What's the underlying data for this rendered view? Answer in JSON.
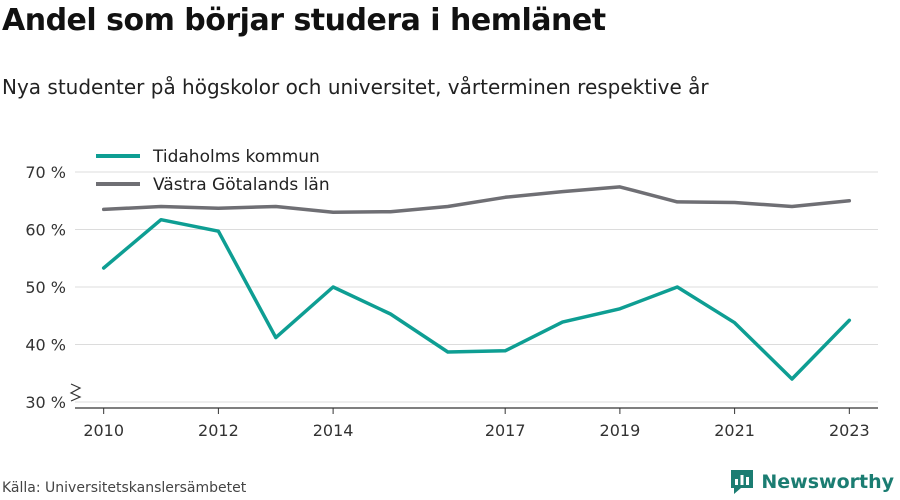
{
  "title": "Andel som börjar studera i hemlänet",
  "subtitle": "Nya studenter på högskolor och universitet, vårterminen respektive år",
  "source": "Källa: Universitetskanslersämbetet",
  "brand": {
    "name": "Newsworthy",
    "icon": "newsworthy-logo-icon",
    "color": "#1b7d72"
  },
  "chart_data": {
    "type": "line",
    "title": "",
    "xlabel": "",
    "ylabel": "",
    "x": [
      2010,
      2011,
      2012,
      2013,
      2014,
      2015,
      2016,
      2017,
      2018,
      2019,
      2020,
      2021,
      2022,
      2023
    ],
    "xticks": [
      2010,
      2012,
      2014,
      2017,
      2019,
      2021,
      2023
    ],
    "xtick_labels": [
      "2010",
      "2012",
      "2014",
      "2017",
      "2019",
      "2021",
      "2023"
    ],
    "yticks": [
      30,
      40,
      50,
      60,
      70
    ],
    "ytick_labels": [
      "30 %",
      "40 %",
      "50 %",
      "60 %",
      "70 %"
    ],
    "ylim": [
      30,
      71
    ],
    "y_axis_break": true,
    "grid": true,
    "legend_position": "top-left",
    "series": [
      {
        "name": "Tidaholms kommun",
        "color": "#0e9e93",
        "values": [
          53.3,
          61.7,
          59.7,
          41.2,
          50.0,
          45.3,
          38.7,
          38.9,
          43.9,
          46.2,
          50.0,
          43.8,
          34.0,
          44.2
        ]
      },
      {
        "name": "Västra Götalands län",
        "color": "#6f6f74",
        "values": [
          63.5,
          64.0,
          63.7,
          64.0,
          63.0,
          63.1,
          64.0,
          65.6,
          66.6,
          67.4,
          64.8,
          64.7,
          64.0,
          65.0
        ]
      }
    ]
  }
}
